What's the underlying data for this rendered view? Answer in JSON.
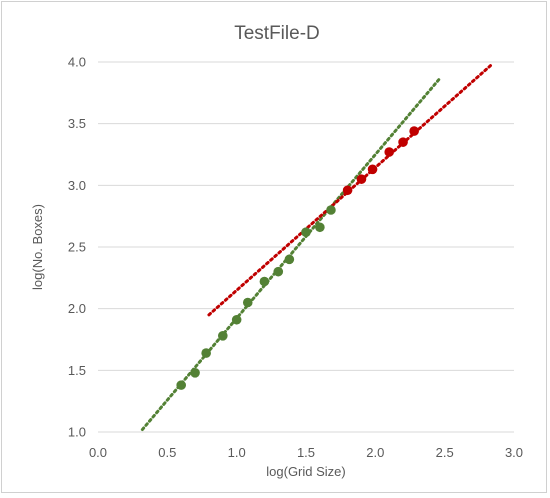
{
  "chart_data": {
    "type": "scatter",
    "title": "TestFile-D",
    "xlabel": "log(Grid Size)",
    "ylabel": "log(No. Boxes)",
    "xlim": [
      0.0,
      3.0
    ],
    "ylim": [
      1.0,
      4.0
    ],
    "x_ticks": [
      "0.0",
      "0.5",
      "1.0",
      "1.5",
      "2.0",
      "2.5",
      "3.0"
    ],
    "y_ticks": [
      "1.0",
      "1.5",
      "2.0",
      "2.5",
      "3.0",
      "3.5",
      "4.0"
    ],
    "grid": "horizontal",
    "legend": "none",
    "series": [
      {
        "color": "#538135",
        "points": [
          [
            0.6,
            1.38
          ],
          [
            0.7,
            1.48
          ],
          [
            0.78,
            1.64
          ],
          [
            0.9,
            1.78
          ],
          [
            1.0,
            1.91
          ],
          [
            1.08,
            2.05
          ],
          [
            1.2,
            2.22
          ],
          [
            1.3,
            2.3
          ],
          [
            1.38,
            2.4
          ],
          [
            1.5,
            2.62
          ],
          [
            1.6,
            2.66
          ],
          [
            1.68,
            2.8
          ]
        ],
        "trendline": {
          "x": [
            0.32,
            2.46
          ],
          "y": [
            1.02,
            3.86
          ]
        }
      },
      {
        "color": "#c00000",
        "points": [
          [
            1.8,
            2.96
          ],
          [
            1.9,
            3.05
          ],
          [
            1.98,
            3.13
          ],
          [
            2.1,
            3.27
          ],
          [
            2.2,
            3.35
          ],
          [
            2.28,
            3.44
          ]
        ],
        "trendline": {
          "x": [
            0.8,
            2.84
          ],
          "y": [
            1.95,
            3.98
          ]
        }
      }
    ]
  }
}
